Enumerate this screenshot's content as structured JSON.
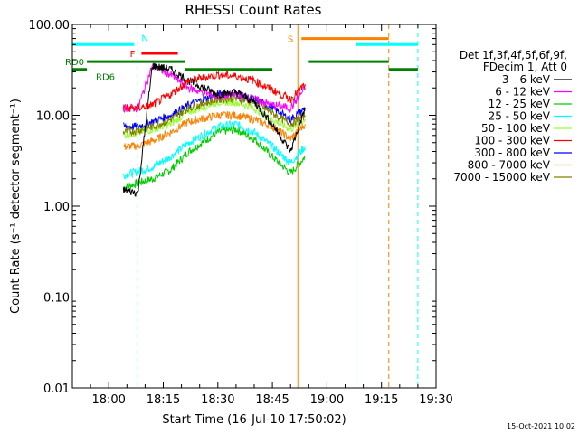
{
  "chart_data": {
    "type": "line",
    "title": "RHESSI Count Rates",
    "xlabel": "Start Time (16-Jul-10 17:50:02)",
    "ylabel": "Count Rate (s⁻¹ detector segment⁻¹)",
    "x_scale": "time",
    "y_scale": "log",
    "x_range_minutes_after_1750": [
      0,
      100
    ],
    "ylim": [
      0.01,
      100
    ],
    "x_ticks": [
      "18:00",
      "18:15",
      "18:30",
      "18:45",
      "19:00",
      "19:15",
      "19:30"
    ],
    "y_ticks": [
      "0.01",
      "0.10",
      "1.00",
      "10.00",
      "100.00"
    ],
    "legend_header": [
      "Det 1f,3f,4f,5f,6f,9f,",
      "FDecim 1, Att 0"
    ],
    "legend_position": "right",
    "footer_stamp": "15-Oct-2021 10:02",
    "series": [
      {
        "name": "3 - 6 keV",
        "color": "#000000",
        "t": [
          "18:04",
          "18:08",
          "18:12",
          "18:17",
          "18:22",
          "18:30",
          "18:35",
          "18:40",
          "18:45",
          "18:50",
          "18:54"
        ],
        "values": [
          1.5,
          1.4,
          35,
          32,
          24,
          17,
          18,
          14,
          8,
          4,
          12
        ]
      },
      {
        "name": "6 - 12 keV",
        "color": "#ff00ff",
        "t": [
          "18:04",
          "18:08",
          "18:12",
          "18:17",
          "18:22",
          "18:30",
          "18:35",
          "18:40",
          "18:45",
          "18:50",
          "18:54"
        ],
        "values": [
          12,
          12,
          35,
          28,
          20,
          16,
          17,
          15,
          13,
          12,
          20
        ]
      },
      {
        "name": "12 - 25 keV",
        "color": "#00cc00",
        "t": [
          "18:04",
          "18:08",
          "18:12",
          "18:17",
          "18:22",
          "18:30",
          "18:35",
          "18:40",
          "18:45",
          "18:50",
          "18:54"
        ],
        "values": [
          1.6,
          1.8,
          2.0,
          2.5,
          4.0,
          6.5,
          7.0,
          5.5,
          3.5,
          2.3,
          3.5
        ]
      },
      {
        "name": "25 - 50 keV",
        "color": "#00ffff",
        "t": [
          "18:04",
          "18:08",
          "18:12",
          "18:17",
          "18:22",
          "18:30",
          "18:35",
          "18:40",
          "18:45",
          "18:50",
          "18:54"
        ],
        "values": [
          2.2,
          2.4,
          2.7,
          3.5,
          5.0,
          7.5,
          8.0,
          6.5,
          4.5,
          3.0,
          4.5
        ]
      },
      {
        "name": "50 - 100 keV",
        "color": "#99ff33",
        "t": [
          "18:04",
          "18:08",
          "18:12",
          "18:17",
          "18:22",
          "18:30",
          "18:35",
          "18:40",
          "18:45",
          "18:50",
          "18:54"
        ],
        "values": [
          6.0,
          6.5,
          7.0,
          8.0,
          11,
          14,
          14,
          12,
          9,
          7,
          9
        ]
      },
      {
        "name": "100 - 300 keV",
        "color": "#ff0000",
        "t": [
          "18:04",
          "18:08",
          "18:12",
          "18:17",
          "18:22",
          "18:30",
          "18:35",
          "18:40",
          "18:45",
          "18:50",
          "18:54"
        ],
        "values": [
          12,
          12,
          13,
          17,
          24,
          28,
          27,
          24,
          19,
          15,
          22
        ]
      },
      {
        "name": "300 - 800 keV",
        "color": "#0000ff",
        "t": [
          "18:04",
          "18:08",
          "18:12",
          "18:17",
          "18:22",
          "18:30",
          "18:35",
          "18:40",
          "18:45",
          "18:50",
          "18:54"
        ],
        "values": [
          7.5,
          7.5,
          8.5,
          10,
          13,
          17,
          17,
          15,
          12,
          9,
          12
        ]
      },
      {
        "name": "800 - 7000 keV",
        "color": "#ff8000",
        "t": [
          "18:04",
          "18:08",
          "18:12",
          "18:17",
          "18:22",
          "18:30",
          "18:35",
          "18:40",
          "18:45",
          "18:50",
          "18:54"
        ],
        "values": [
          4.5,
          4.6,
          5.2,
          6.5,
          8.5,
          10,
          10,
          9,
          7.5,
          5.5,
          8
        ]
      },
      {
        "name": "7000 - 15000 keV",
        "color": "#808000",
        "t": [
          "18:04",
          "18:08",
          "18:12",
          "18:17",
          "18:22",
          "18:30",
          "18:35",
          "18:40",
          "18:45",
          "18:50",
          "18:54"
        ],
        "values": [
          6.5,
          6.8,
          7.5,
          9,
          12,
          15,
          15.5,
          14,
          10.5,
          8,
          10
        ]
      }
    ],
    "vertical_markers": [
      {
        "t": "17:50",
        "color": "#00ffff",
        "style": "solid"
      },
      {
        "t": "18:08",
        "color": "#00ffff",
        "style": "dashed"
      },
      {
        "t": "18:52",
        "color": "#ff8000",
        "style": "solid"
      },
      {
        "t": "19:08",
        "color": "#00ffff",
        "style": "solid"
      },
      {
        "t": "19:17",
        "color": "#ff8000",
        "style": "dashed"
      },
      {
        "t": "19:25",
        "color": "#00ffff",
        "style": "dashed"
      }
    ],
    "flag_bars": [
      {
        "label": "N",
        "color": "#00ffff",
        "y": 60,
        "segments": [
          [
            "17:50",
            "18:07"
          ],
          [
            "19:08",
            "19:25"
          ]
        ]
      },
      {
        "label": "F",
        "color": "#ff0000",
        "y": 48,
        "segments": [
          [
            "18:09",
            "18:19"
          ]
        ]
      },
      {
        "label": "S",
        "color": "#ff8000",
        "y": 70,
        "segments": [
          [
            "18:53",
            "19:17"
          ]
        ]
      },
      {
        "label": "RD0",
        "color": "#008000",
        "y": 39,
        "segments": [
          [
            "17:54",
            "18:21"
          ],
          [
            "18:55",
            "19:17"
          ]
        ]
      },
      {
        "label": "RD6",
        "color": "#008000",
        "y": 32,
        "segments": [
          [
            "17:50",
            "17:54"
          ],
          [
            "18:21",
            "18:45"
          ],
          [
            "19:17",
            "19:25"
          ]
        ]
      }
    ]
  }
}
